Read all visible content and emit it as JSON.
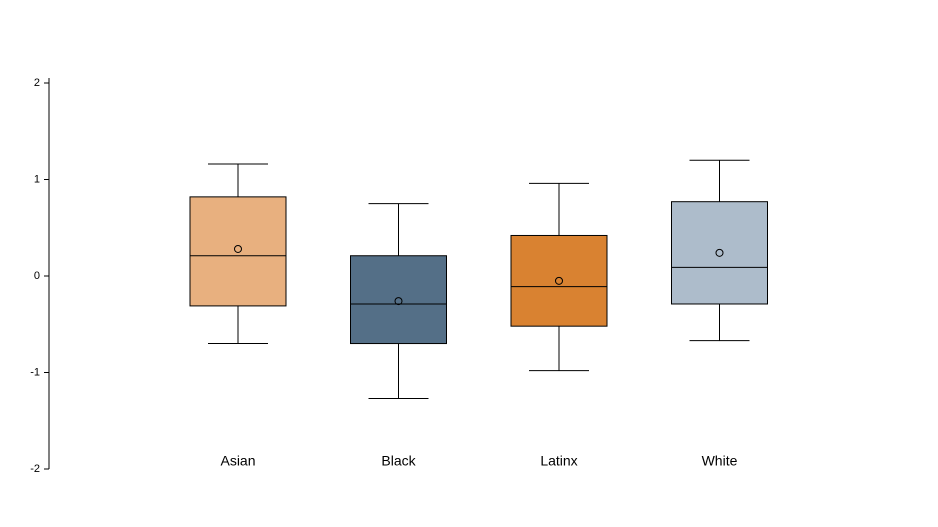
{
  "chart_data": {
    "type": "box",
    "categories": [
      "Asian",
      "Black",
      "Latinx",
      "White"
    ],
    "colors": [
      "#e8b07f",
      "#546f87",
      "#d98231",
      "#adbccb"
    ],
    "whisker_low": [
      -0.7,
      -1.27,
      -0.98,
      -0.67
    ],
    "q1": [
      -0.31,
      -0.7,
      -0.52,
      -0.29
    ],
    "median": [
      0.21,
      -0.29,
      -0.11,
      0.09
    ],
    "q3": [
      0.82,
      0.21,
      0.42,
      0.77
    ],
    "whisker_high": [
      1.16,
      0.75,
      0.96,
      1.2
    ],
    "mean": [
      0.28,
      -0.26,
      -0.05,
      0.24
    ],
    "ylim": [
      -2,
      2
    ],
    "yticks": [
      -2,
      -1,
      0,
      1,
      2
    ]
  }
}
